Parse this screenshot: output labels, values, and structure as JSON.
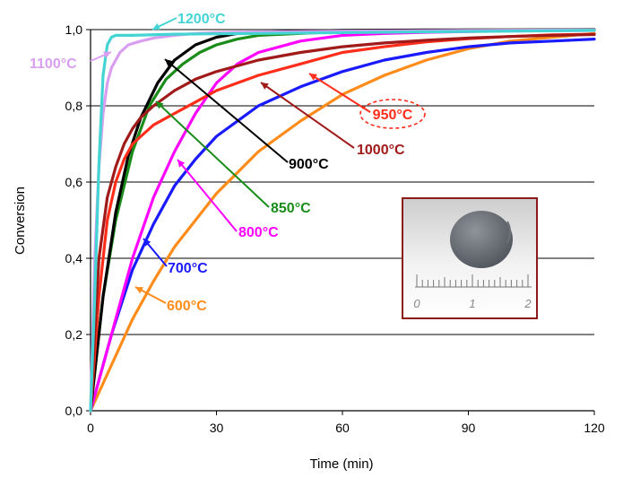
{
  "chart_data": {
    "type": "line",
    "xlabel": "Time (min)",
    "ylabel": "Conversion",
    "xlim": [
      0,
      120
    ],
    "ylim": [
      0,
      1
    ],
    "x_ticks": [
      "0",
      "30",
      "60",
      "90",
      "120"
    ],
    "y_ticks": [
      "0,0",
      "0,2",
      "0,4",
      "0,6",
      "0,8",
      "1,0"
    ],
    "grid": "horizontal",
    "series": [
      {
        "name": "600°C",
        "color": "#ff8c1a",
        "x": [
          0,
          5,
          10,
          15,
          20,
          30,
          40,
          50,
          60,
          70,
          80,
          90,
          100,
          110,
          120
        ],
        "y": [
          0,
          0.12,
          0.24,
          0.34,
          0.43,
          0.57,
          0.68,
          0.76,
          0.83,
          0.88,
          0.92,
          0.95,
          0.97,
          0.98,
          0.99
        ]
      },
      {
        "name": "700°C",
        "color": "#1a1aff",
        "x": [
          0,
          5,
          10,
          15,
          20,
          25,
          30,
          40,
          50,
          60,
          70,
          80,
          90,
          100,
          110,
          120
        ],
        "y": [
          0,
          0.2,
          0.37,
          0.49,
          0.59,
          0.66,
          0.72,
          0.8,
          0.85,
          0.89,
          0.92,
          0.94,
          0.955,
          0.965,
          0.97,
          0.975
        ]
      },
      {
        "name": "800°C",
        "color": "#ff00ff",
        "x": [
          0,
          5,
          10,
          15,
          20,
          25,
          30,
          35,
          40,
          50,
          60,
          70,
          80,
          90,
          100,
          120
        ],
        "y": [
          0,
          0.2,
          0.4,
          0.56,
          0.68,
          0.78,
          0.86,
          0.91,
          0.94,
          0.97,
          0.985,
          0.99,
          0.993,
          0.995,
          0.997,
          0.998
        ]
      },
      {
        "name": "850°C",
        "color": "#1a8c1a",
        "x": [
          0,
          3,
          6,
          10,
          14,
          18,
          22,
          26,
          30,
          35,
          40,
          50,
          60,
          70,
          80,
          90,
          100,
          120
        ],
        "y": [
          0,
          0.3,
          0.5,
          0.68,
          0.8,
          0.87,
          0.91,
          0.94,
          0.96,
          0.975,
          0.985,
          0.99,
          0.995,
          0.997,
          0.998,
          0.999,
          0.999,
          1.0
        ]
      },
      {
        "name": "900°C",
        "color": "#000000",
        "x": [
          0,
          3,
          6,
          9,
          12,
          16,
          20,
          25,
          30,
          35,
          40,
          50,
          60,
          80,
          100,
          120
        ],
        "y": [
          0,
          0.3,
          0.52,
          0.67,
          0.77,
          0.86,
          0.92,
          0.96,
          0.98,
          0.99,
          0.993,
          0.996,
          0.998,
          0.999,
          0.999,
          1.0
        ]
      },
      {
        "name": "950°C",
        "color": "#ff2d1a",
        "x": [
          0,
          2,
          4,
          6,
          8,
          10,
          12,
          15,
          20,
          25,
          30,
          40,
          50,
          60,
          70,
          80,
          90,
          100,
          110,
          120
        ],
        "y": [
          0,
          0.3,
          0.5,
          0.6,
          0.66,
          0.7,
          0.72,
          0.75,
          0.78,
          0.81,
          0.84,
          0.88,
          0.91,
          0.94,
          0.955,
          0.968,
          0.976,
          0.982,
          0.986,
          0.988
        ]
      },
      {
        "name": "1000°C",
        "color": "#a01a1a",
        "x": [
          0,
          2,
          4,
          6,
          8,
          10,
          12,
          15,
          20,
          25,
          30,
          40,
          50,
          60,
          70,
          80,
          90,
          100,
          110,
          120
        ],
        "y": [
          0,
          0.4,
          0.56,
          0.64,
          0.7,
          0.74,
          0.77,
          0.8,
          0.84,
          0.87,
          0.89,
          0.92,
          0.94,
          0.955,
          0.965,
          0.972,
          0.978,
          0.982,
          0.985,
          0.987
        ]
      },
      {
        "name": "1100°C",
        "color": "#d99ef0",
        "x": [
          0,
          1,
          2,
          3,
          4,
          5,
          7,
          9,
          12,
          15,
          20,
          25,
          30,
          40,
          60,
          90,
          120
        ],
        "y": [
          0,
          0.4,
          0.64,
          0.78,
          0.86,
          0.9,
          0.94,
          0.96,
          0.97,
          0.978,
          0.985,
          0.99,
          0.992,
          0.994,
          0.996,
          0.998,
          0.999
        ]
      },
      {
        "name": "1200°C",
        "color": "#44d4d4",
        "x": [
          0,
          1,
          2,
          3,
          4,
          5,
          6,
          8,
          10,
          20,
          40,
          60,
          90,
          120
        ],
        "y": [
          0,
          0.3,
          0.65,
          0.88,
          0.96,
          0.98,
          0.985,
          0.985,
          0.985,
          0.988,
          0.99,
          0.992,
          0.995,
          0.998
        ]
      }
    ],
    "annotations": [
      {
        "text": "1200°C",
        "color": "#44d4d4",
        "circled": false
      },
      {
        "text": "1100°C",
        "color": "#d99ef0",
        "circled": false
      },
      {
        "text": "950°C",
        "color": "#ff2d1a",
        "circled": true
      },
      {
        "text": "1000°C",
        "color": "#a01a1a",
        "circled": false
      },
      {
        "text": "900°C",
        "color": "#000000",
        "circled": false
      },
      {
        "text": "850°C",
        "color": "#1a8c1a",
        "circled": false
      },
      {
        "text": "800°C",
        "color": "#ff00ff",
        "circled": false
      },
      {
        "text": "700°C",
        "color": "#1a1aff",
        "circled": false
      },
      {
        "text": "600°C",
        "color": "#ff8c1a",
        "circled": false
      }
    ],
    "inset_photo": {
      "border_color": "#8b1a1a",
      "ruler_labels": [
        "0",
        "1",
        "2"
      ]
    }
  }
}
